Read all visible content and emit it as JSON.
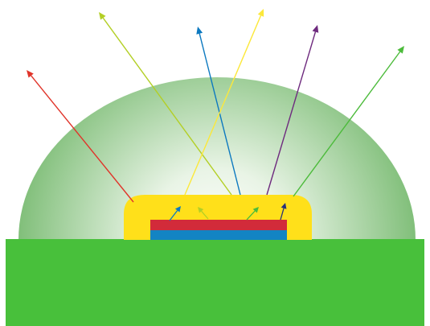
{
  "diagram": {
    "colors": {
      "substrate": "#48c03b",
      "dome_edge": "#7fbe78",
      "dome_center": "#ffffff",
      "encapsulant": "#ffe01a",
      "chip_top_layer": "#d22b3a",
      "chip_bottom_layer": "#1384c3"
    },
    "emitted_rays": [
      {
        "color": "#e0342a"
      },
      {
        "color": "#b3cf25"
      },
      {
        "color": "#0c79c0"
      },
      {
        "color": "#fce83a"
      },
      {
        "color": "#6e2a7e"
      },
      {
        "color": "#4cbb3b"
      }
    ],
    "internal_arrows": [
      {
        "color": "#0c79c0"
      },
      {
        "color": "#b3cf25"
      },
      {
        "color": "#4cbb3b"
      },
      {
        "color": "#26307a"
      }
    ]
  }
}
